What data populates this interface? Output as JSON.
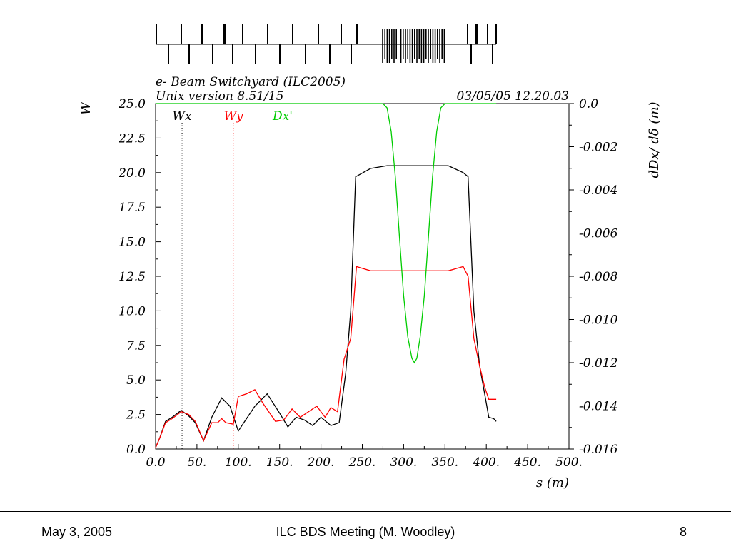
{
  "header": {
    "title": "e- Beam Switchyard (ILC2005)",
    "version": "Unix version 8.51/15",
    "timestamp": "03/05/05  12.20.03"
  },
  "footer": {
    "date": "May 3, 2005",
    "center": "ILC BDS Meeting (M. Woodley)",
    "page": "8"
  },
  "colors": {
    "wx": "#000000",
    "wy": "#ff0000",
    "dx": "#00cc00"
  },
  "chart_data": {
    "type": "line",
    "xlabel": "s (m)",
    "ylabel_left": "W",
    "ylabel_right": "dDx/ dδ (m)",
    "xlim": [
      0,
      500
    ],
    "ylim_left": [
      0,
      25
    ],
    "ylim_right": [
      -0.016,
      0.0
    ],
    "x_ticks": [
      "0.0",
      "50.",
      "100.",
      "150.",
      "200.",
      "250.",
      "300.",
      "350.",
      "400.",
      "450.",
      "500."
    ],
    "y_left_ticks": [
      "0.0",
      "2.5",
      "5.0",
      "7.5",
      "10.0",
      "12.5",
      "15.0",
      "17.5",
      "20.0",
      "22.5",
      "25.0"
    ],
    "y_right_ticks": [
      "0.0",
      "-0.002",
      "-0.004",
      "-0.006",
      "-0.008",
      "-0.010",
      "-0.012",
      "-0.014",
      "-0.016"
    ],
    "legend": [
      {
        "label": "Wx",
        "x": 32
      },
      {
        "label": "Wy",
        "x": 94
      },
      {
        "label": "Dx'"
      }
    ],
    "series": [
      {
        "name": "Wx",
        "x": [
          0,
          5,
          12,
          20,
          31,
          40,
          48,
          58,
          68,
          80,
          90,
          100,
          110,
          120,
          135,
          150,
          160,
          170,
          180,
          190,
          200,
          212,
          222,
          230,
          236,
          242,
          260,
          280,
          300,
          320,
          340,
          354,
          372,
          378,
          385,
          392,
          398,
          403,
          409,
          412
        ],
        "y": [
          0.1,
          0.8,
          2.0,
          2.3,
          2.8,
          2.4,
          1.9,
          0.6,
          2.3,
          3.7,
          3.1,
          1.3,
          2.2,
          3.1,
          4.0,
          2.6,
          1.6,
          2.3,
          2.1,
          1.7,
          2.3,
          1.7,
          1.9,
          5.5,
          10.0,
          19.7,
          20.3,
          20.5,
          20.5,
          20.5,
          20.5,
          20.5,
          20.0,
          19.7,
          10.0,
          6.0,
          4.0,
          2.3,
          2.2,
          2.0
        ]
      },
      {
        "name": "Wy",
        "x": [
          0,
          5,
          12,
          20,
          31,
          40,
          48,
          58,
          68,
          75,
          80,
          85,
          94,
          100,
          110,
          120,
          130,
          145,
          155,
          165,
          175,
          185,
          195,
          205,
          212,
          220,
          228,
          236,
          243,
          260,
          280,
          300,
          320,
          340,
          354,
          372,
          378,
          385,
          392,
          398,
          403,
          408,
          412
        ],
        "y": [
          0.1,
          0.8,
          1.9,
          2.2,
          2.7,
          2.5,
          2.0,
          0.6,
          1.9,
          1.9,
          2.2,
          1.9,
          1.8,
          3.8,
          4.0,
          4.3,
          3.3,
          2.0,
          2.1,
          2.9,
          2.3,
          2.7,
          3.1,
          2.3,
          3.0,
          2.7,
          6.5,
          8.0,
          13.2,
          12.9,
          12.9,
          12.9,
          12.9,
          12.9,
          12.9,
          13.2,
          12.5,
          8.0,
          6.0,
          4.5,
          3.6,
          3.6,
          3.6
        ]
      },
      {
        "name": "Dx'",
        "x": [
          0,
          100,
          200,
          260,
          275,
          280,
          285,
          290,
          295,
          300,
          305,
          310,
          313,
          316,
          320,
          325,
          330,
          335,
          340,
          345,
          350,
          360,
          400,
          412
        ],
        "y": [
          0.0,
          0.0,
          0.0,
          0.0,
          0.0,
          -0.0002,
          -0.0013,
          -0.0034,
          -0.0062,
          -0.0089,
          -0.0108,
          -0.0118,
          -0.012,
          -0.0118,
          -0.0108,
          -0.0089,
          -0.0062,
          -0.0034,
          -0.0013,
          -0.0002,
          0.0,
          0.0,
          0.0,
          0.0
        ]
      }
    ]
  }
}
